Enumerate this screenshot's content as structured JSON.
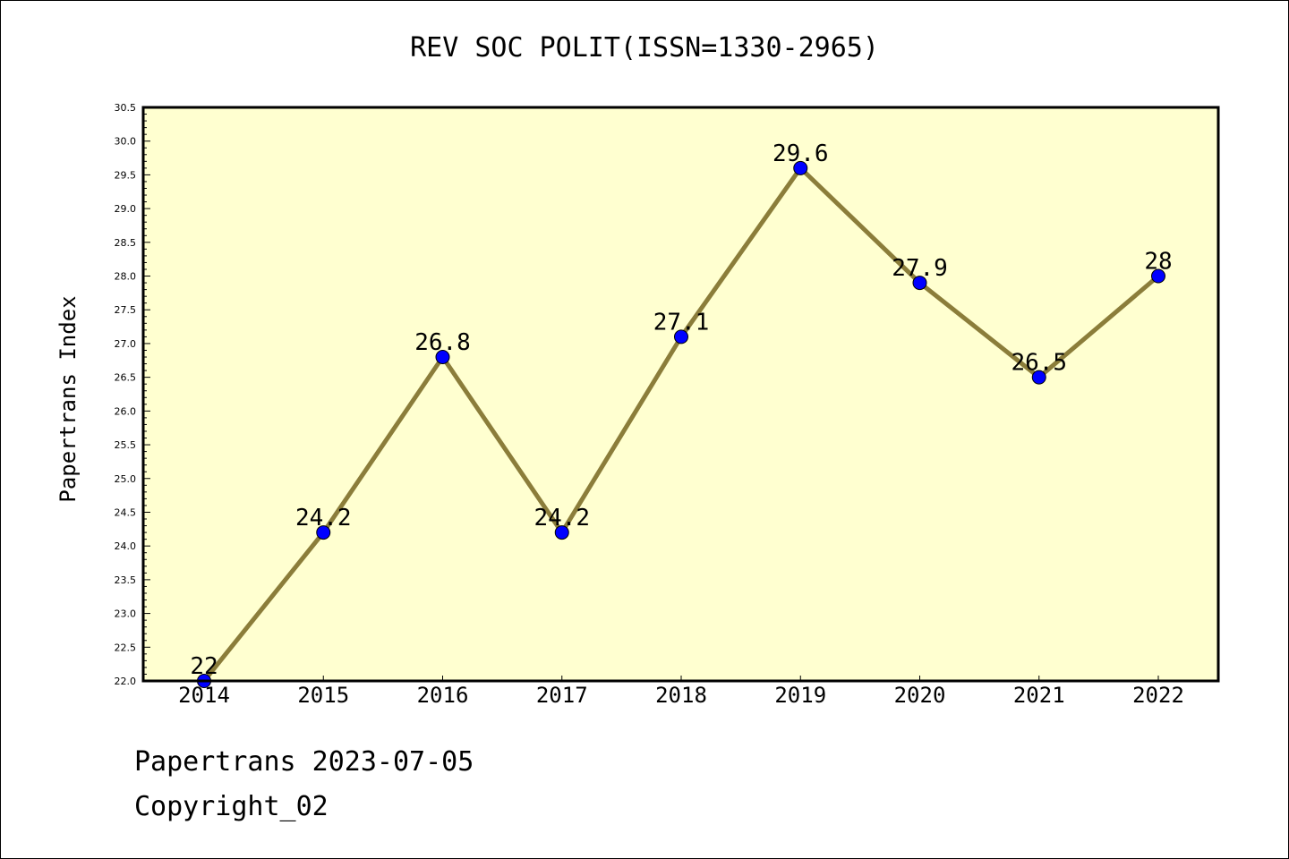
{
  "chart_data": {
    "type": "line",
    "title": "REV SOC POLIT(ISSN=1330-2965)",
    "xlabel": "",
    "ylabel": "Papertrans Index",
    "categories": [
      "2014",
      "2015",
      "2016",
      "2017",
      "2018",
      "2019",
      "2020",
      "2021",
      "2022"
    ],
    "values": [
      22,
      24.2,
      26.8,
      24.2,
      27.1,
      29.6,
      27.9,
      26.5,
      28
    ],
    "data_labels": [
      "22",
      "24.2",
      "26.8",
      "24.2",
      "27.1",
      "29.6",
      "27.9",
      "26.5",
      "28"
    ],
    "ylim": [
      22.0,
      30.5
    ],
    "ytick_step": 0.5,
    "grid": false,
    "colors": {
      "plot_background": "#ffffd0",
      "line": "#8b7d3a",
      "marker": "#0000ff"
    }
  },
  "footer": {
    "line1": "Papertrans 2023-07-05",
    "line2": "Copyright_02"
  }
}
